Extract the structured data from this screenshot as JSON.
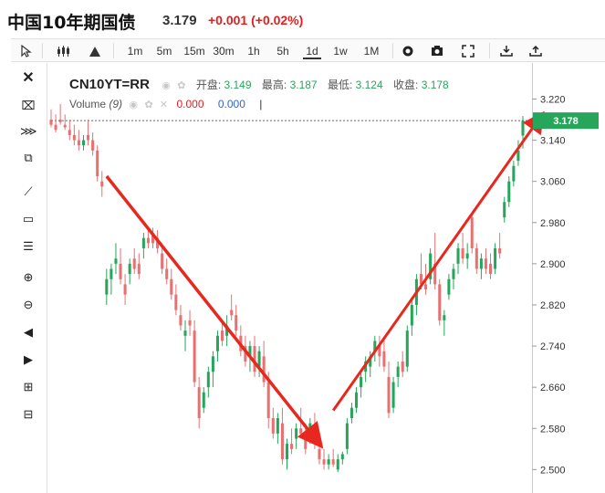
{
  "header": {
    "title": "中国10年期国债",
    "price": "3.179",
    "change": "+0.001 (+0.02%)"
  },
  "toolbar": {
    "intervals": [
      "1m",
      "5m",
      "15m",
      "30m",
      "1h",
      "5h",
      "1d",
      "1w",
      "1M"
    ],
    "active_interval": "1d",
    "icons": [
      "cursor-icon",
      "candlestick-icon",
      "mountain-icon",
      "settings-icon",
      "camera-icon",
      "fullscreen-icon",
      "download-icon",
      "upload-icon"
    ]
  },
  "left_tools": [
    "close-icon",
    "crosshair-delete-icon",
    "clear-all-icon",
    "copy-icon",
    "line-tool-icon",
    "rectangle-icon",
    "fib-levels-icon",
    "zoom-in-icon",
    "zoom-out-icon",
    "scroll-left-icon",
    "scroll-right-icon",
    "zoom-in-plus-icon",
    "zoom-reset-icon"
  ],
  "legend": {
    "symbol": "CN10YT=RR",
    "open_label": "开盘:",
    "open_value": "3.149",
    "high_label": "最高:",
    "high_value": "3.187",
    "low_label": "最低:",
    "low_value": "3.124",
    "close_label": "收盘:",
    "close_value": "3.178",
    "volume_label": "Volume",
    "volume_param": "(9)",
    "volume_value1": "0.000",
    "volume_value2": "0.000"
  },
  "colors": {
    "up": "#26a65b",
    "down": "#e87070",
    "arrow": "#e8281e",
    "last_price_bg": "#26a65b"
  },
  "chart_data": {
    "type": "candlestick",
    "y_ticks": [
      "3.220",
      "3.140",
      "3.060",
      "2.980",
      "2.900",
      "2.820",
      "2.740",
      "2.660",
      "2.580",
      "2.500"
    ],
    "ylim": [
      2.49,
      3.235
    ],
    "last_price": "3.178",
    "candles": [
      [
        3.18,
        3.2,
        3.165,
        3.17
      ],
      [
        3.17,
        3.19,
        3.155,
        3.16
      ],
      [
        3.18,
        3.21,
        3.17,
        3.175
      ],
      [
        3.17,
        3.19,
        3.16,
        3.165
      ],
      [
        3.16,
        3.18,
        3.14,
        3.15
      ],
      [
        3.15,
        3.17,
        3.13,
        3.14
      ],
      [
        3.14,
        3.16,
        3.12,
        3.13
      ],
      [
        3.13,
        3.15,
        3.12,
        3.14
      ],
      [
        3.15,
        3.18,
        3.13,
        3.14
      ],
      [
        3.14,
        3.155,
        3.11,
        3.12
      ],
      [
        3.12,
        3.13,
        3.06,
        3.07
      ],
      [
        3.06,
        3.08,
        3.03,
        3.05
      ],
      [
        2.84,
        2.89,
        2.82,
        2.87
      ],
      [
        2.87,
        2.9,
        2.84,
        2.89
      ],
      [
        2.9,
        2.94,
        2.88,
        2.91
      ],
      [
        2.9,
        2.93,
        2.86,
        2.87
      ],
      [
        2.86,
        2.88,
        2.82,
        2.84
      ],
      [
        2.88,
        2.91,
        2.86,
        2.9
      ],
      [
        2.91,
        2.93,
        2.88,
        2.89
      ],
      [
        2.9,
        2.92,
        2.87,
        2.88
      ],
      [
        2.93,
        2.96,
        2.91,
        2.95
      ],
      [
        2.95,
        2.97,
        2.93,
        2.94
      ],
      [
        2.96,
        2.97,
        2.93,
        2.94
      ],
      [
        2.95,
        2.965,
        2.92,
        2.93
      ],
      [
        2.92,
        2.94,
        2.88,
        2.89
      ],
      [
        2.89,
        2.91,
        2.86,
        2.87
      ],
      [
        2.87,
        2.89,
        2.83,
        2.84
      ],
      [
        2.84,
        2.86,
        2.8,
        2.81
      ],
      [
        2.8,
        2.82,
        2.77,
        2.78
      ],
      [
        2.76,
        2.79,
        2.73,
        2.77
      ],
      [
        2.79,
        2.81,
        2.76,
        2.78
      ],
      [
        2.77,
        2.79,
        2.66,
        2.67
      ],
      [
        2.66,
        2.68,
        2.58,
        2.6
      ],
      [
        2.62,
        2.66,
        2.61,
        2.65
      ],
      [
        2.66,
        2.7,
        2.64,
        2.69
      ],
      [
        2.69,
        2.73,
        2.66,
        2.72
      ],
      [
        2.73,
        2.77,
        2.71,
        2.76
      ],
      [
        2.77,
        2.79,
        2.74,
        2.75
      ],
      [
        2.76,
        2.8,
        2.74,
        2.78
      ],
      [
        2.81,
        2.84,
        2.79,
        2.8
      ],
      [
        2.8,
        2.82,
        2.76,
        2.77
      ],
      [
        2.76,
        2.78,
        2.72,
        2.73
      ],
      [
        2.74,
        2.76,
        2.7,
        2.71
      ],
      [
        2.72,
        2.75,
        2.69,
        2.74
      ],
      [
        2.74,
        2.76,
        2.68,
        2.69
      ],
      [
        2.7,
        2.74,
        2.68,
        2.73
      ],
      [
        2.72,
        2.75,
        2.66,
        2.67
      ],
      [
        2.67,
        2.69,
        2.58,
        2.6
      ],
      [
        2.6,
        2.62,
        2.56,
        2.57
      ],
      [
        2.57,
        2.61,
        2.55,
        2.6
      ],
      [
        2.59,
        2.62,
        2.51,
        2.52
      ],
      [
        2.52,
        2.56,
        2.5,
        2.55
      ],
      [
        2.55,
        2.58,
        2.53,
        2.54
      ],
      [
        2.56,
        2.59,
        2.54,
        2.58
      ],
      [
        2.58,
        2.62,
        2.56,
        2.57
      ],
      [
        2.56,
        2.59,
        2.53,
        2.54
      ],
      [
        2.57,
        2.6,
        2.55,
        2.59
      ],
      [
        2.58,
        2.61,
        2.54,
        2.55
      ],
      [
        2.54,
        2.56,
        2.51,
        2.52
      ],
      [
        2.52,
        2.54,
        2.5,
        2.51
      ],
      [
        2.51,
        2.53,
        2.5,
        2.52
      ],
      [
        2.52,
        2.54,
        2.505,
        2.51
      ],
      [
        2.5,
        2.53,
        2.495,
        2.52
      ],
      [
        2.52,
        2.535,
        2.51,
        2.53
      ],
      [
        2.54,
        2.6,
        2.53,
        2.59
      ],
      [
        2.6,
        2.63,
        2.59,
        2.62
      ],
      [
        2.62,
        2.66,
        2.61,
        2.65
      ],
      [
        2.66,
        2.69,
        2.64,
        2.68
      ],
      [
        2.69,
        2.72,
        2.67,
        2.71
      ],
      [
        2.7,
        2.73,
        2.68,
        2.72
      ],
      [
        2.73,
        2.76,
        2.71,
        2.75
      ],
      [
        2.74,
        2.76,
        2.7,
        2.72
      ],
      [
        2.73,
        2.76,
        2.69,
        2.7
      ],
      [
        2.68,
        2.71,
        2.6,
        2.61
      ],
      [
        2.62,
        2.68,
        2.61,
        2.67
      ],
      [
        2.68,
        2.71,
        2.66,
        2.7
      ],
      [
        2.71,
        2.73,
        2.68,
        2.69
      ],
      [
        2.7,
        2.78,
        2.69,
        2.77
      ],
      [
        2.78,
        2.83,
        2.76,
        2.82
      ],
      [
        2.82,
        2.88,
        2.8,
        2.87
      ],
      [
        2.88,
        2.92,
        2.85,
        2.86
      ],
      [
        2.86,
        2.9,
        2.84,
        2.85
      ],
      [
        2.87,
        2.93,
        2.86,
        2.92
      ],
      [
        2.9,
        2.96,
        2.85,
        2.86
      ],
      [
        2.86,
        2.87,
        2.78,
        2.79
      ],
      [
        2.79,
        2.81,
        2.76,
        2.8
      ],
      [
        2.84,
        2.88,
        2.83,
        2.87
      ],
      [
        2.87,
        2.9,
        2.85,
        2.89
      ],
      [
        2.9,
        2.94,
        2.88,
        2.93
      ],
      [
        2.93,
        2.96,
        2.9,
        2.91
      ],
      [
        2.91,
        2.94,
        2.89,
        2.92
      ],
      [
        2.99,
        3.0,
        2.92,
        2.93
      ],
      [
        2.93,
        2.94,
        2.88,
        2.89
      ],
      [
        2.89,
        2.92,
        2.87,
        2.91
      ],
      [
        2.91,
        2.93,
        2.88,
        2.89
      ],
      [
        2.9,
        2.92,
        2.87,
        2.88
      ],
      [
        2.89,
        2.94,
        2.88,
        2.93
      ],
      [
        2.93,
        2.96,
        2.91,
        2.92
      ],
      [
        2.99,
        3.03,
        2.98,
        3.02
      ],
      [
        3.02,
        3.07,
        3.01,
        3.06
      ],
      [
        3.06,
        3.1,
        3.05,
        3.09
      ],
      [
        3.1,
        3.14,
        3.09,
        3.12
      ],
      [
        3.149,
        3.187,
        3.124,
        3.178
      ]
    ]
  },
  "annotations": {
    "arrow_down": {
      "from_index": 12,
      "from_value": 3.07,
      "to_index": 58,
      "to_value": 2.55
    },
    "arrow_up": {
      "from_index": 61,
      "from_value": 2.615,
      "to_index": 106,
      "to_value": 3.188
    }
  }
}
